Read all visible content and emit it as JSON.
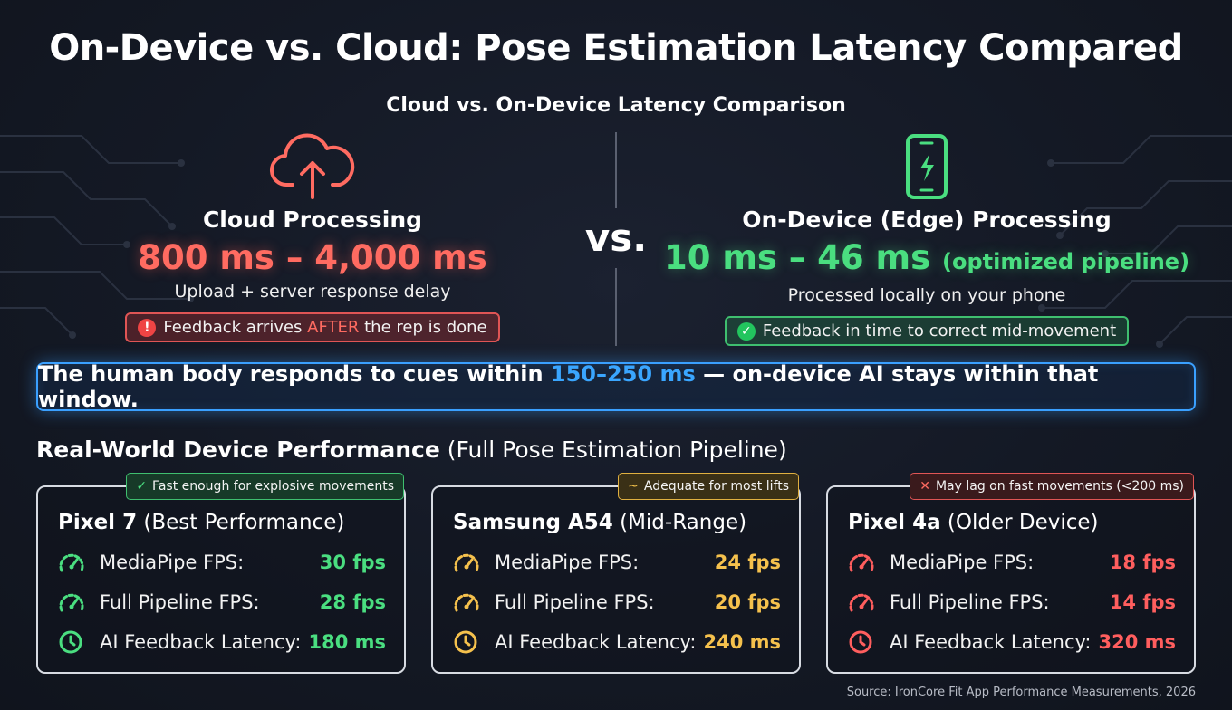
{
  "title": "On-Device vs. Cloud: Pose Estimation Latency Compared",
  "subtitle": "Cloud vs. On-Device Latency Comparison",
  "vs_label": "vs.",
  "cloud": {
    "icon": "cloud-upload-icon",
    "heading": "Cloud Processing",
    "range": "800 ms – 4,000 ms",
    "description": "Upload + server response delay",
    "pill_before": "Feedback arrives ",
    "pill_highlight": "AFTER",
    "pill_after": " the rep is done",
    "pill_icon": "exclamation-icon",
    "accent": "#ff6b61"
  },
  "edge": {
    "icon": "phone-lightning-icon",
    "heading": "On-Device (Edge) Processing",
    "range": "10 ms – 46 ms",
    "range_note": "(optimized pipeline)",
    "description": "Processed locally on your phone",
    "pill": "Feedback in time to correct mid-movement",
    "pill_icon": "check-circle-icon",
    "accent": "#4ade80"
  },
  "banner": {
    "before": "The human body responds to cues within ",
    "highlight": "150–250 ms",
    "after": " — on-device AI stays within that window.",
    "accent": "#3aa6ff"
  },
  "section": {
    "title_bold": "Real-World Device Performance",
    "title_rest": " (Full Pose Estimation Pipeline)"
  },
  "devices": [
    {
      "tag_symbol": "✓",
      "tag": "Fast enough for explosive movements",
      "name": "Pixel 7",
      "qualifier": " (Best Performance)",
      "color": "#4ade80",
      "metrics": [
        {
          "icon": "speedometer-icon",
          "label": "MediaPipe FPS:",
          "value": "30 fps"
        },
        {
          "icon": "speedometer-icon",
          "label": "Full Pipeline FPS:",
          "value": "28 fps"
        },
        {
          "icon": "clock-icon",
          "label": "AI Feedback Latency:",
          "value": "180 ms"
        }
      ]
    },
    {
      "tag_symbol": "~",
      "tag": "Adequate for most lifts",
      "name": "Samsung A54",
      "qualifier": " (Mid-Range)",
      "color": "#f5c14d",
      "metrics": [
        {
          "icon": "speedometer-icon",
          "label": "MediaPipe FPS:",
          "value": "24 fps"
        },
        {
          "icon": "speedometer-icon",
          "label": "Full Pipeline FPS:",
          "value": "20 fps"
        },
        {
          "icon": "clock-icon",
          "label": "AI Feedback Latency:",
          "value": "240 ms"
        }
      ]
    },
    {
      "tag_symbol": "✕",
      "tag": "May lag on fast movements (<200 ms)",
      "name": "Pixel 4a",
      "qualifier": " (Older Device)",
      "color": "#ff5e5e",
      "metrics": [
        {
          "icon": "speedometer-icon",
          "label": "MediaPipe FPS:",
          "value": "18 fps"
        },
        {
          "icon": "speedometer-icon",
          "label": "Full Pipeline FPS:",
          "value": "14 fps"
        },
        {
          "icon": "clock-icon",
          "label": "AI Feedback Latency:",
          "value": "320 ms"
        }
      ]
    }
  ],
  "source": "Source: IronCore Fit App Performance Measurements, 2026"
}
